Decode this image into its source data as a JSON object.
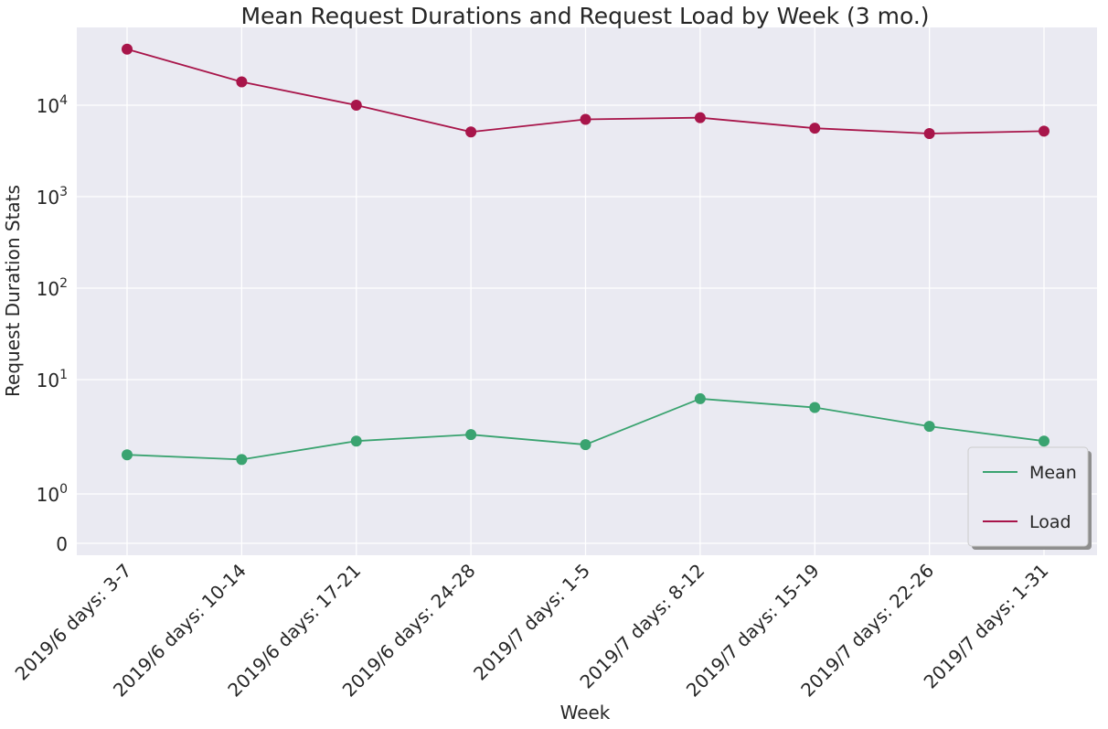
{
  "chart_data": {
    "type": "line",
    "title": "Mean Request Durations and Request Load by Week (3 mo.)",
    "xlabel": "Week",
    "ylabel": "Request Duration Stats",
    "yscale": "symlog",
    "grid": true,
    "legend_position": "lower-right",
    "categories": [
      "2019/6 days: 3-7",
      "2019/6 days: 10-14",
      "2019/6 days: 17-21",
      "2019/6 days: 24-28",
      "2019/7 days: 1-5",
      "2019/7 days: 8-12",
      "2019/7 days: 15-19",
      "2019/7 days: 22-26",
      "2019/7 days: 1-31"
    ],
    "y_ticks": [
      {
        "value": 0,
        "base": "0",
        "exp": ""
      },
      {
        "value": 1,
        "base": "10",
        "exp": "0"
      },
      {
        "value": 10,
        "base": "10",
        "exp": "1"
      },
      {
        "value": 100,
        "base": "10",
        "exp": "2"
      },
      {
        "value": 1000,
        "base": "10",
        "exp": "3"
      },
      {
        "value": 10000,
        "base": "10",
        "exp": "4"
      }
    ],
    "series": [
      {
        "name": "Mean",
        "color": "#3aa370",
        "values": [
          2.2,
          2.0,
          2.9,
          3.3,
          2.7,
          6.8,
          5.7,
          3.9,
          2.9
        ]
      },
      {
        "name": "Load",
        "color": "#a8154a",
        "values": [
          41000,
          18000,
          10000,
          5100,
          7000,
          7300,
          5600,
          4900,
          5200
        ]
      }
    ]
  }
}
